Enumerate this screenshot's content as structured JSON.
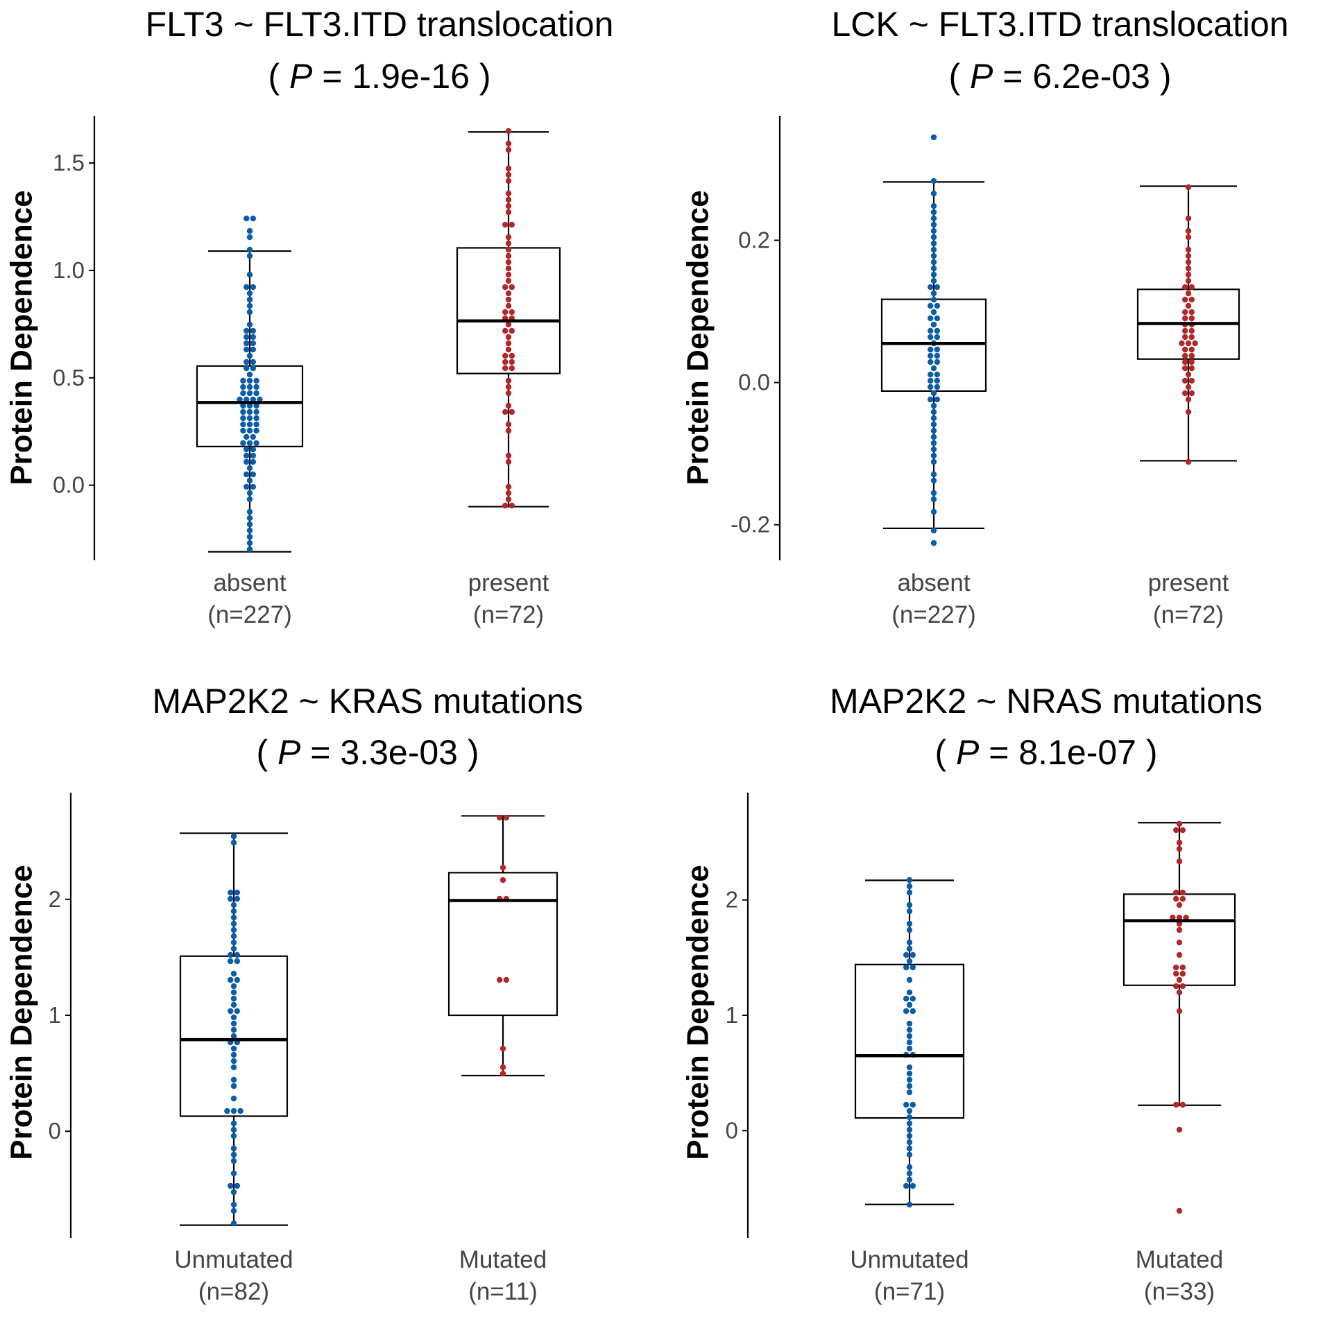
{
  "colors": {
    "group_a": "#0b5da8",
    "group_b": "#b0282a",
    "box": "#000000",
    "axis": "#000000"
  },
  "chart_data": [
    {
      "type": "box",
      "title": "FLT3 ~ FLT3.ITD translocation",
      "p_prefix": "( ",
      "p_symbol": "P",
      "p_text": " = 1.9e-16 )",
      "ylabel": "Protein Dependence",
      "ylim": [
        -0.35,
        1.72
      ],
      "yticks": [
        "0.0",
        "0.5",
        "1.0",
        "1.5"
      ],
      "categories": [
        {
          "name": "absent",
          "count": "(n=227)",
          "color_key": "group_a",
          "box": {
            "whisker_low": -0.31,
            "q1": 0.18,
            "median": 0.385,
            "q3": 0.555,
            "whisker_high": 1.09
          },
          "values": [
            1.25,
            1.23,
            1.19,
            1.16,
            1.09,
            1.06,
            0.98,
            0.93,
            0.91,
            0.88,
            0.86,
            0.83,
            0.8,
            0.76,
            0.73,
            0.71,
            0.7,
            0.69,
            0.67,
            0.65,
            0.63,
            0.62,
            0.6,
            0.58,
            0.56,
            0.55,
            0.53,
            0.52,
            0.5,
            0.49,
            0.48,
            0.47,
            0.46,
            0.45,
            0.44,
            0.43,
            0.42,
            0.41,
            0.4,
            0.4,
            0.39,
            0.38,
            0.37,
            0.36,
            0.35,
            0.34,
            0.33,
            0.32,
            0.31,
            0.3,
            0.29,
            0.28,
            0.27,
            0.26,
            0.25,
            0.24,
            0.23,
            0.22,
            0.21,
            0.2,
            0.19,
            0.18,
            0.16,
            0.15,
            0.13,
            0.12,
            0.1,
            0.08,
            0.06,
            0.04,
            0.02,
            0.0,
            -0.02,
            -0.05,
            -0.08,
            -0.11,
            -0.14,
            -0.17,
            -0.2,
            -0.23,
            -0.26,
            -0.31
          ]
        },
        {
          "name": "present",
          "count": "(n=72)",
          "color_key": "group_b",
          "box": {
            "whisker_low": -0.1,
            "q1": 0.52,
            "median": 0.765,
            "q3": 1.105,
            "whisker_high": 1.645
          },
          "values": [
            1.65,
            1.59,
            1.56,
            1.48,
            1.46,
            1.41,
            1.37,
            1.32,
            1.29,
            1.26,
            1.22,
            1.2,
            1.16,
            1.12,
            1.09,
            1.06,
            1.04,
            1.01,
            0.98,
            0.95,
            0.93,
            0.91,
            0.88,
            0.86,
            0.84,
            0.82,
            0.8,
            0.78,
            0.77,
            0.75,
            0.73,
            0.71,
            0.69,
            0.66,
            0.63,
            0.61,
            0.59,
            0.58,
            0.57,
            0.55,
            0.53,
            0.5,
            0.46,
            0.42,
            0.38,
            0.35,
            0.34,
            0.29,
            0.25,
            0.14,
            0.11,
            -0.01,
            -0.03,
            -0.06,
            -0.09,
            -0.1
          ]
        }
      ]
    },
    {
      "type": "box",
      "title": "LCK ~ FLT3.ITD translocation",
      "p_prefix": "( ",
      "p_symbol": "P",
      "p_text": " = 6.2e-03 )",
      "ylabel": "Protein Dependence",
      "ylim": [
        -0.25,
        0.375
      ],
      "yticks": [
        "-0.2",
        "0.0",
        "0.2"
      ],
      "categories": [
        {
          "name": "absent",
          "count": "(n=227)",
          "color_key": "group_a",
          "box": {
            "whisker_low": -0.205,
            "q1": -0.012,
            "median": 0.055,
            "q3": 0.117,
            "whisker_high": 0.282
          },
          "values": [
            0.348,
            0.281,
            0.265,
            0.252,
            0.24,
            0.228,
            0.218,
            0.21,
            0.2,
            0.192,
            0.184,
            0.176,
            0.168,
            0.16,
            0.152,
            0.145,
            0.138,
            0.131,
            0.124,
            0.117,
            0.111,
            0.105,
            0.099,
            0.093,
            0.087,
            0.081,
            0.075,
            0.07,
            0.065,
            0.06,
            0.055,
            0.05,
            0.045,
            0.04,
            0.035,
            0.03,
            0.025,
            0.02,
            0.015,
            0.01,
            0.005,
            0.0,
            -0.005,
            -0.01,
            -0.016,
            -0.022,
            -0.028,
            -0.035,
            -0.042,
            -0.05,
            -0.058,
            -0.066,
            -0.075,
            -0.085,
            -0.095,
            -0.105,
            -0.115,
            -0.125,
            -0.138,
            -0.152,
            -0.168,
            -0.185,
            -0.205,
            -0.222
          ]
        },
        {
          "name": "present",
          "count": "(n=72)",
          "color_key": "group_b",
          "box": {
            "whisker_low": -0.11,
            "q1": 0.033,
            "median": 0.083,
            "q3": 0.131,
            "whisker_high": 0.276
          },
          "values": [
            0.276,
            0.235,
            0.215,
            0.205,
            0.19,
            0.18,
            0.17,
            0.16,
            0.152,
            0.145,
            0.138,
            0.131,
            0.125,
            0.12,
            0.114,
            0.108,
            0.103,
            0.098,
            0.093,
            0.088,
            0.083,
            0.079,
            0.075,
            0.071,
            0.067,
            0.063,
            0.059,
            0.055,
            0.051,
            0.047,
            0.043,
            0.039,
            0.035,
            0.031,
            0.027,
            0.022,
            0.017,
            0.012,
            0.006,
            0.0,
            -0.006,
            -0.012,
            -0.018,
            -0.025,
            -0.045,
            -0.11
          ]
        }
      ]
    },
    {
      "type": "box",
      "title": "MAP2K2 ~ KRAS mutations",
      "p_prefix": "( ",
      "p_symbol": "P",
      "p_text": " = 3.3e-03 )",
      "ylabel": "Protein Dependence",
      "ylim": [
        -0.92,
        2.92
      ],
      "yticks": [
        "0",
        "1",
        "2"
      ],
      "categories": [
        {
          "name": "Unmutated",
          "count": "(n=82)",
          "color_key": "group_a",
          "box": {
            "whisker_low": -0.81,
            "q1": 0.13,
            "median": 0.79,
            "q3": 1.51,
            "whisker_high": 2.57
          },
          "values": [
            2.57,
            2.5,
            2.08,
            2.05,
            2.03,
            2.0,
            1.93,
            1.88,
            1.84,
            1.8,
            1.75,
            1.7,
            1.62,
            1.58,
            1.54,
            1.5,
            1.47,
            1.45,
            1.35,
            1.3,
            1.28,
            1.24,
            1.2,
            1.16,
            1.1,
            1.05,
            1.03,
            1.0,
            0.92,
            0.87,
            0.82,
            0.78,
            0.76,
            0.7,
            0.66,
            0.6,
            0.55,
            0.45,
            0.4,
            0.3,
            0.19,
            0.17,
            0.15,
            0.05,
            0.02,
            -0.05,
            -0.15,
            -0.2,
            -0.26,
            -0.35,
            -0.45,
            -0.48,
            -0.55,
            -0.62,
            -0.68,
            -0.81
          ]
        },
        {
          "name": "Mutated",
          "count": "(n=11)",
          "color_key": "group_b",
          "box": {
            "whisker_low": 0.48,
            "q1": 1.0,
            "median": 1.99,
            "q3": 2.23,
            "whisker_high": 2.72
          },
          "values": [
            2.72,
            2.68,
            2.3,
            2.17,
            2.0,
            2.0,
            1.33,
            1.31,
            0.7,
            0.53,
            0.48
          ]
        }
      ]
    },
    {
      "type": "box",
      "title": "MAP2K2 ~ NRAS mutations",
      "p_prefix": "( ",
      "p_symbol": "P",
      "p_text": " = 8.1e-07 )",
      "ylabel": "Protein Dependence",
      "ylim": [
        -0.93,
        2.93
      ],
      "yticks": [
        "0",
        "1",
        "2"
      ],
      "categories": [
        {
          "name": "Unmutated",
          "count": "(n=71)",
          "color_key": "group_a",
          "box": {
            "whisker_low": -0.64,
            "q1": 0.11,
            "median": 0.65,
            "q3": 1.44,
            "whisker_high": 2.17
          },
          "values": [
            2.17,
            2.13,
            2.05,
            1.98,
            1.9,
            1.82,
            1.72,
            1.62,
            1.58,
            1.55,
            1.5,
            1.46,
            1.44,
            1.4,
            1.28,
            1.2,
            1.15,
            1.12,
            1.1,
            1.06,
            1.03,
            0.95,
            0.88,
            0.8,
            0.78,
            0.7,
            0.67,
            0.64,
            0.57,
            0.52,
            0.46,
            0.38,
            0.34,
            0.25,
            0.2,
            0.15,
            0.1,
            0.05,
            0.01,
            -0.05,
            -0.12,
            -0.17,
            -0.22,
            -0.3,
            -0.35,
            -0.4,
            -0.47,
            -0.5,
            -0.64
          ]
        },
        {
          "name": "Mutated",
          "count": "(n=33)",
          "color_key": "group_b",
          "box": {
            "whisker_low": 0.22,
            "q1": 1.26,
            "median": 1.82,
            "q3": 2.05,
            "whisker_high": 2.67
          },
          "values": [
            2.67,
            2.62,
            2.6,
            2.48,
            2.43,
            2.33,
            2.07,
            2.05,
            2.03,
            2.01,
            1.97,
            1.87,
            1.85,
            1.83,
            1.78,
            1.72,
            1.61,
            1.5,
            1.44,
            1.42,
            1.38,
            1.35,
            1.3,
            1.27,
            1.26,
            1.21,
            1.01,
            0.22,
            0.21,
            0.02,
            -0.7
          ]
        }
      ]
    }
  ]
}
